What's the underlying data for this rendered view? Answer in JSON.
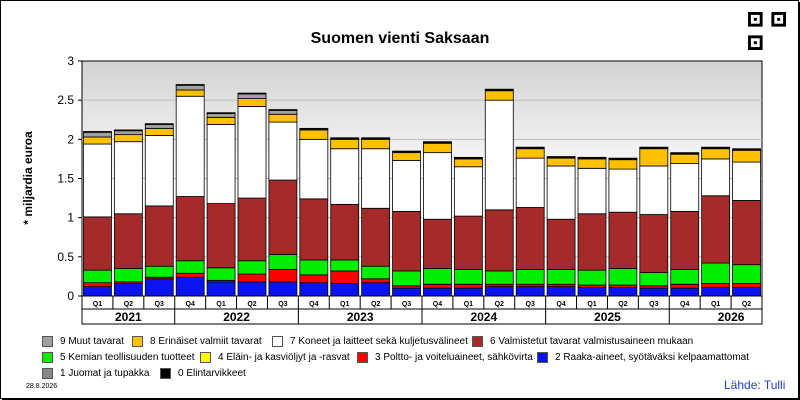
{
  "title": "Suomen vienti Saksaan",
  "ylabel": "* miljardia euroa",
  "date": "28.8.2026",
  "source": "Lähde: Tulli",
  "chart_data": {
    "type": "bar",
    "stacked": true,
    "title": "Suomen vienti Saksaan",
    "ylabel": "* miljardia euroa",
    "ylim": [
      0,
      3
    ],
    "yticks": [
      "0",
      "0.5",
      "1",
      "1.5",
      "2",
      "2.5",
      "3"
    ],
    "grid": true,
    "legend_position": "bottom",
    "categories": [
      "Q1",
      "Q2",
      "Q3",
      "Q4",
      "Q1",
      "Q2",
      "Q3",
      "Q4",
      "Q1",
      "Q2",
      "Q3",
      "Q4",
      "Q1",
      "Q2",
      "Q3",
      "Q4",
      "Q1",
      "Q2",
      "Q3",
      "Q4",
      "Q1",
      "Q2"
    ],
    "years": [
      "2021",
      "2022",
      "2023",
      "2024",
      "2025",
      "2026"
    ],
    "series": [
      {
        "name": "0 Elintarvikkeet",
        "color": "#000000",
        "values": [
          0.01,
          0.01,
          0.01,
          0.01,
          0.01,
          0.01,
          0.01,
          0.01,
          0.01,
          0.01,
          0.01,
          0.01,
          0.01,
          0.01,
          0.01,
          0.01,
          0.01,
          0.01,
          0.01,
          0.01,
          0.01,
          0.01
        ]
      },
      {
        "name": "1 Juomat ja tupakka",
        "color": "#888888",
        "values": [
          0,
          0,
          0,
          0,
          0,
          0,
          0,
          0,
          0,
          0,
          0,
          0,
          0,
          0,
          0,
          0,
          0,
          0,
          0,
          0,
          0,
          0
        ]
      },
      {
        "name": "2 Raaka-aineet, syötäväksi kelpaamattomat",
        "color": "#0a14f0",
        "values": [
          0.12,
          0.16,
          0.22,
          0.24,
          0.18,
          0.18,
          0.18,
          0.17,
          0.16,
          0.17,
          0.1,
          0.1,
          0.1,
          0.12,
          0.12,
          0.12,
          0.11,
          0.11,
          0.1,
          0.1,
          0.11,
          0.11
        ]
      },
      {
        "name": "3 Poltto- ja voiteluaineet, sähkövirta",
        "color": "#ff0000",
        "values": [
          0.05,
          0.02,
          0.02,
          0.05,
          0.02,
          0.1,
          0.16,
          0.1,
          0.16,
          0.05,
          0.03,
          0.05,
          0.05,
          0.03,
          0.03,
          0.03,
          0.03,
          0.03,
          0.03,
          0.05,
          0.05,
          0.05
        ]
      },
      {
        "name": "5 Kemian teollisuuden tuotteet",
        "color": "#00ee00",
        "values": [
          0.16,
          0.17,
          0.14,
          0.16,
          0.16,
          0.17,
          0.19,
          0.19,
          0.14,
          0.16,
          0.19,
          0.2,
          0.19,
          0.17,
          0.19,
          0.19,
          0.19,
          0.21,
          0.17,
          0.19,
          0.26,
          0.24
        ]
      },
      {
        "name": "6 Valmistetut tavarat valmistusaineen mukaan",
        "color": "#a52a2a",
        "values": [
          0.68,
          0.7,
          0.77,
          0.82,
          0.82,
          0.8,
          0.95,
          0.78,
          0.71,
          0.74,
          0.76,
          0.63,
          0.68,
          0.78,
          0.79,
          0.64,
          0.72,
          0.72,
          0.74,
          0.74,
          0.86,
          0.82
        ]
      },
      {
        "name": "7 Koneet ja laitteet sekä kuljetusvälineet",
        "color": "#ffffff",
        "values": [
          0.93,
          0.92,
          0.9,
          1.28,
          1.01,
          1.17,
          0.74,
          0.76,
          0.71,
          0.76,
          0.65,
          0.85,
          0.63,
          1.4,
          0.63,
          0.68,
          0.58,
          0.55,
          0.62,
          0.61,
          0.47,
          0.49
        ]
      },
      {
        "name": "4 Eläin- ja kasviöljyt ja -rasvat",
        "color": "#ffff00",
        "values": [
          0,
          0,
          0,
          0,
          0,
          0,
          0,
          0,
          0,
          0,
          0,
          0,
          0,
          0,
          0,
          0,
          0,
          0,
          0,
          0,
          0,
          0
        ]
      },
      {
        "name": "8 Erinäiset valmiit tavarat",
        "color": "#ffc000",
        "values": [
          0.09,
          0.09,
          0.09,
          0.08,
          0.09,
          0.1,
          0.1,
          0.12,
          0.12,
          0.12,
          0.1,
          0.12,
          0.1,
          0.12,
          0.12,
          0.1,
          0.12,
          0.12,
          0.22,
          0.12,
          0.13,
          0.15
        ]
      },
      {
        "name": "9 Muut tavarat",
        "color": "#a0a0a0",
        "values": [
          0.06,
          0.05,
          0.05,
          0.06,
          0.05,
          0.06,
          0.05,
          0.01,
          0.01,
          0.01,
          0.01,
          0.01,
          0.01,
          0.01,
          0.01,
          0.01,
          0.01,
          0.01,
          0.01,
          0.01,
          0.01,
          0.01
        ]
      }
    ]
  },
  "legend": [
    {
      "name": "9 Muut tavarat",
      "color": "#a0a0a0"
    },
    {
      "name": "8 Erinäiset valmiit tavarat",
      "color": "#ffc000"
    },
    {
      "name": "7 Koneet ja laitteet sekä kuljetusvälineet",
      "color": "#ffffff"
    },
    {
      "name": "6 Valmistetut tavarat valmistusaineen mukaan",
      "color": "#a52a2a"
    },
    {
      "name": "5 Kemian teollisuuden tuotteet",
      "color": "#00ee00"
    },
    {
      "name": "4 Eläin- ja kasviöljyt ja -rasvat",
      "color": "#ffff00"
    },
    {
      "name": "3 Poltto- ja voiteluaineet, sähkövirta",
      "color": "#ff0000"
    },
    {
      "name": "2 Raaka-aineet, syötäväksi kelpaamattomat",
      "color": "#0a14f0"
    },
    {
      "name": "1 Juomat ja tupakka",
      "color": "#888888"
    },
    {
      "name": "0 Elintarvikkeet",
      "color": "#000000"
    }
  ]
}
